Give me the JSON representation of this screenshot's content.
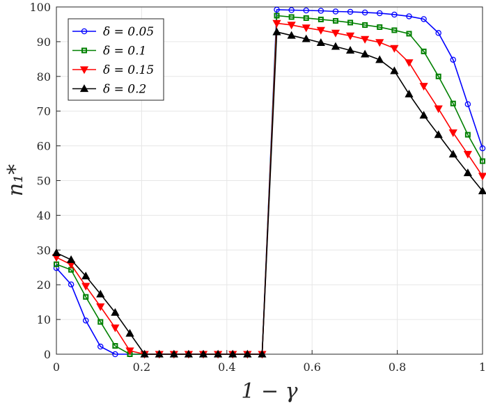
{
  "chart_data": {
    "type": "line",
    "xlabel": "1 − γ",
    "ylabel": "n₁*",
    "xlim": [
      0,
      1
    ],
    "ylim": [
      0,
      100
    ],
    "xticks": [
      "0",
      "0.2",
      "0.4",
      "0.6",
      "0.8",
      "1"
    ],
    "yticks": [
      "0",
      "10",
      "20",
      "30",
      "40",
      "50",
      "60",
      "70",
      "80",
      "90",
      "100"
    ],
    "xtick_values": [
      0,
      0.2,
      0.4,
      0.6,
      0.8,
      1
    ],
    "ytick_values": [
      0,
      10,
      20,
      30,
      40,
      50,
      60,
      70,
      80,
      90,
      100
    ],
    "grid": true,
    "legend_position": "top-left",
    "x": [
      0,
      0.0345,
      0.069,
      0.1034,
      0.1379,
      0.1724,
      0.2069,
      0.2414,
      0.2759,
      0.3103,
      0.3448,
      0.3793,
      0.4138,
      0.4483,
      0.4828,
      0.5172,
      0.5517,
      0.5862,
      0.6207,
      0.6552,
      0.6897,
      0.7241,
      0.7586,
      0.7931,
      0.8276,
      0.8621,
      0.8966,
      0.931,
      0.9655,
      1
    ],
    "series": [
      {
        "name": "δ = 0.05",
        "color": "#0000ff",
        "marker": "circle",
        "values": [
          24.8,
          20.1,
          9.7,
          2.2,
          0,
          0,
          0,
          0,
          0,
          0,
          0,
          0,
          0,
          0,
          0,
          99.2,
          99.1,
          99.0,
          98.9,
          98.7,
          98.6,
          98.4,
          98.2,
          97.8,
          97.3,
          96.5,
          92.5,
          84.8,
          72.0,
          59.3
        ]
      },
      {
        "name": "δ = 0.1",
        "color": "#008000",
        "marker": "square",
        "values": [
          25.9,
          24.3,
          16.5,
          9.3,
          2.4,
          0,
          0,
          0,
          0,
          0,
          0,
          0,
          0,
          0,
          0,
          97.5,
          97.1,
          96.8,
          96.4,
          96.0,
          95.5,
          94.8,
          94.2,
          93.3,
          92.3,
          87.2,
          80.0,
          72.2,
          63.2,
          55.6
        ]
      },
      {
        "name": "δ = 0.15",
        "color": "#ff0000",
        "marker": "triangle-down",
        "values": [
          27.9,
          25.8,
          19.6,
          13.7,
          7.6,
          1.0,
          0,
          0,
          0,
          0,
          0,
          0,
          0,
          0,
          0,
          95.3,
          94.8,
          94.0,
          93.3,
          92.5,
          91.7,
          90.7,
          89.8,
          88.1,
          84.0,
          77.2,
          70.7,
          63.8,
          57.6,
          51.3
        ]
      },
      {
        "name": "δ = 0.2",
        "color": "#000000",
        "marker": "triangle-up",
        "values": [
          29.2,
          27.2,
          22.5,
          17.3,
          12.0,
          6.0,
          0,
          0,
          0,
          0,
          0,
          0,
          0,
          0,
          0,
          92.8,
          91.8,
          90.8,
          89.7,
          88.6,
          87.5,
          86.4,
          84.8,
          81.6,
          74.9,
          68.8,
          63.2,
          57.6,
          52.2,
          47.0
        ]
      }
    ]
  }
}
